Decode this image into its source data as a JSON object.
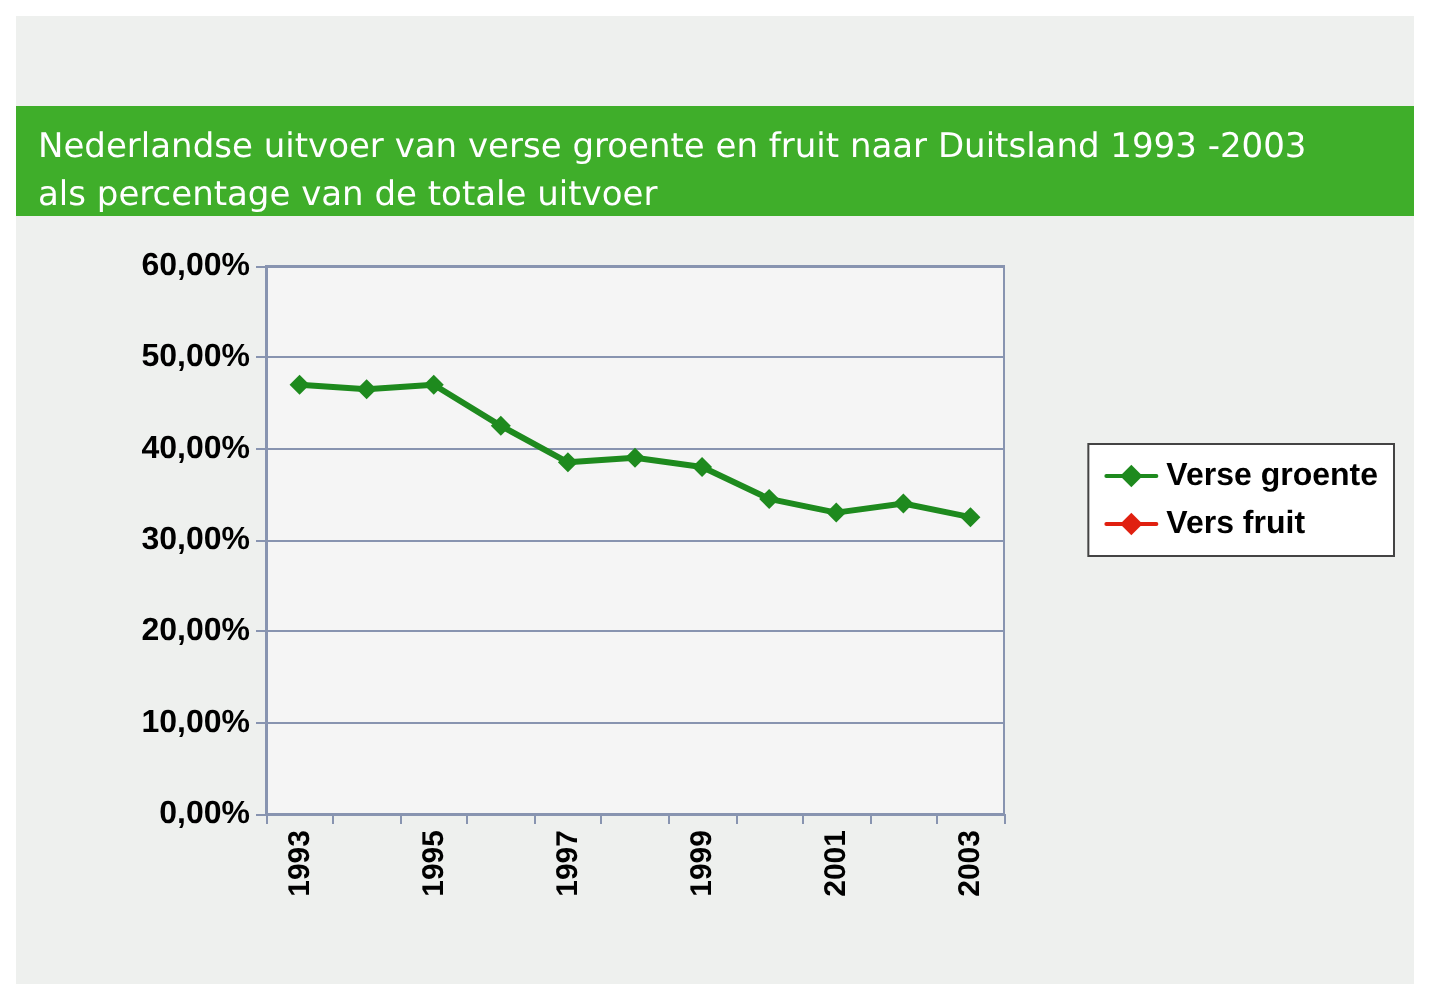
{
  "chart_data": {
    "type": "line",
    "title": "Nederlandse uitvoer van verse groente en fruit naar Duitsland 1993 -2003",
    "subtitle": "als percentage van de totale uitvoer",
    "categories": [
      "1993",
      null,
      "1995",
      null,
      "1997",
      null,
      "1999",
      null,
      "2001",
      null,
      "2003"
    ],
    "series": [
      {
        "name": "Verse groente",
        "color": "#1e8a1e",
        "values": [
          47,
          46.5,
          47,
          42.5,
          38.5,
          39,
          38,
          34.5,
          33,
          34,
          32.5
        ]
      },
      {
        "name": "Vers fruit",
        "color": "#e02010",
        "values": [
          null,
          null,
          null,
          null,
          null,
          null,
          null,
          null,
          null,
          null,
          null
        ]
      }
    ],
    "ylim": [
      0,
      60
    ],
    "yticks": [
      {
        "value": 0,
        "label": "0,00%"
      },
      {
        "value": 10,
        "label": "10,00%"
      },
      {
        "value": 20,
        "label": "20,00%"
      },
      {
        "value": 30,
        "label": "30,00%"
      },
      {
        "value": 40,
        "label": "40,00%"
      },
      {
        "value": 50,
        "label": "50,00%"
      },
      {
        "value": 60,
        "label": "60,00%"
      }
    ],
    "grid": "y",
    "legend": "right",
    "marker": "diamond",
    "line_style": "solid"
  }
}
